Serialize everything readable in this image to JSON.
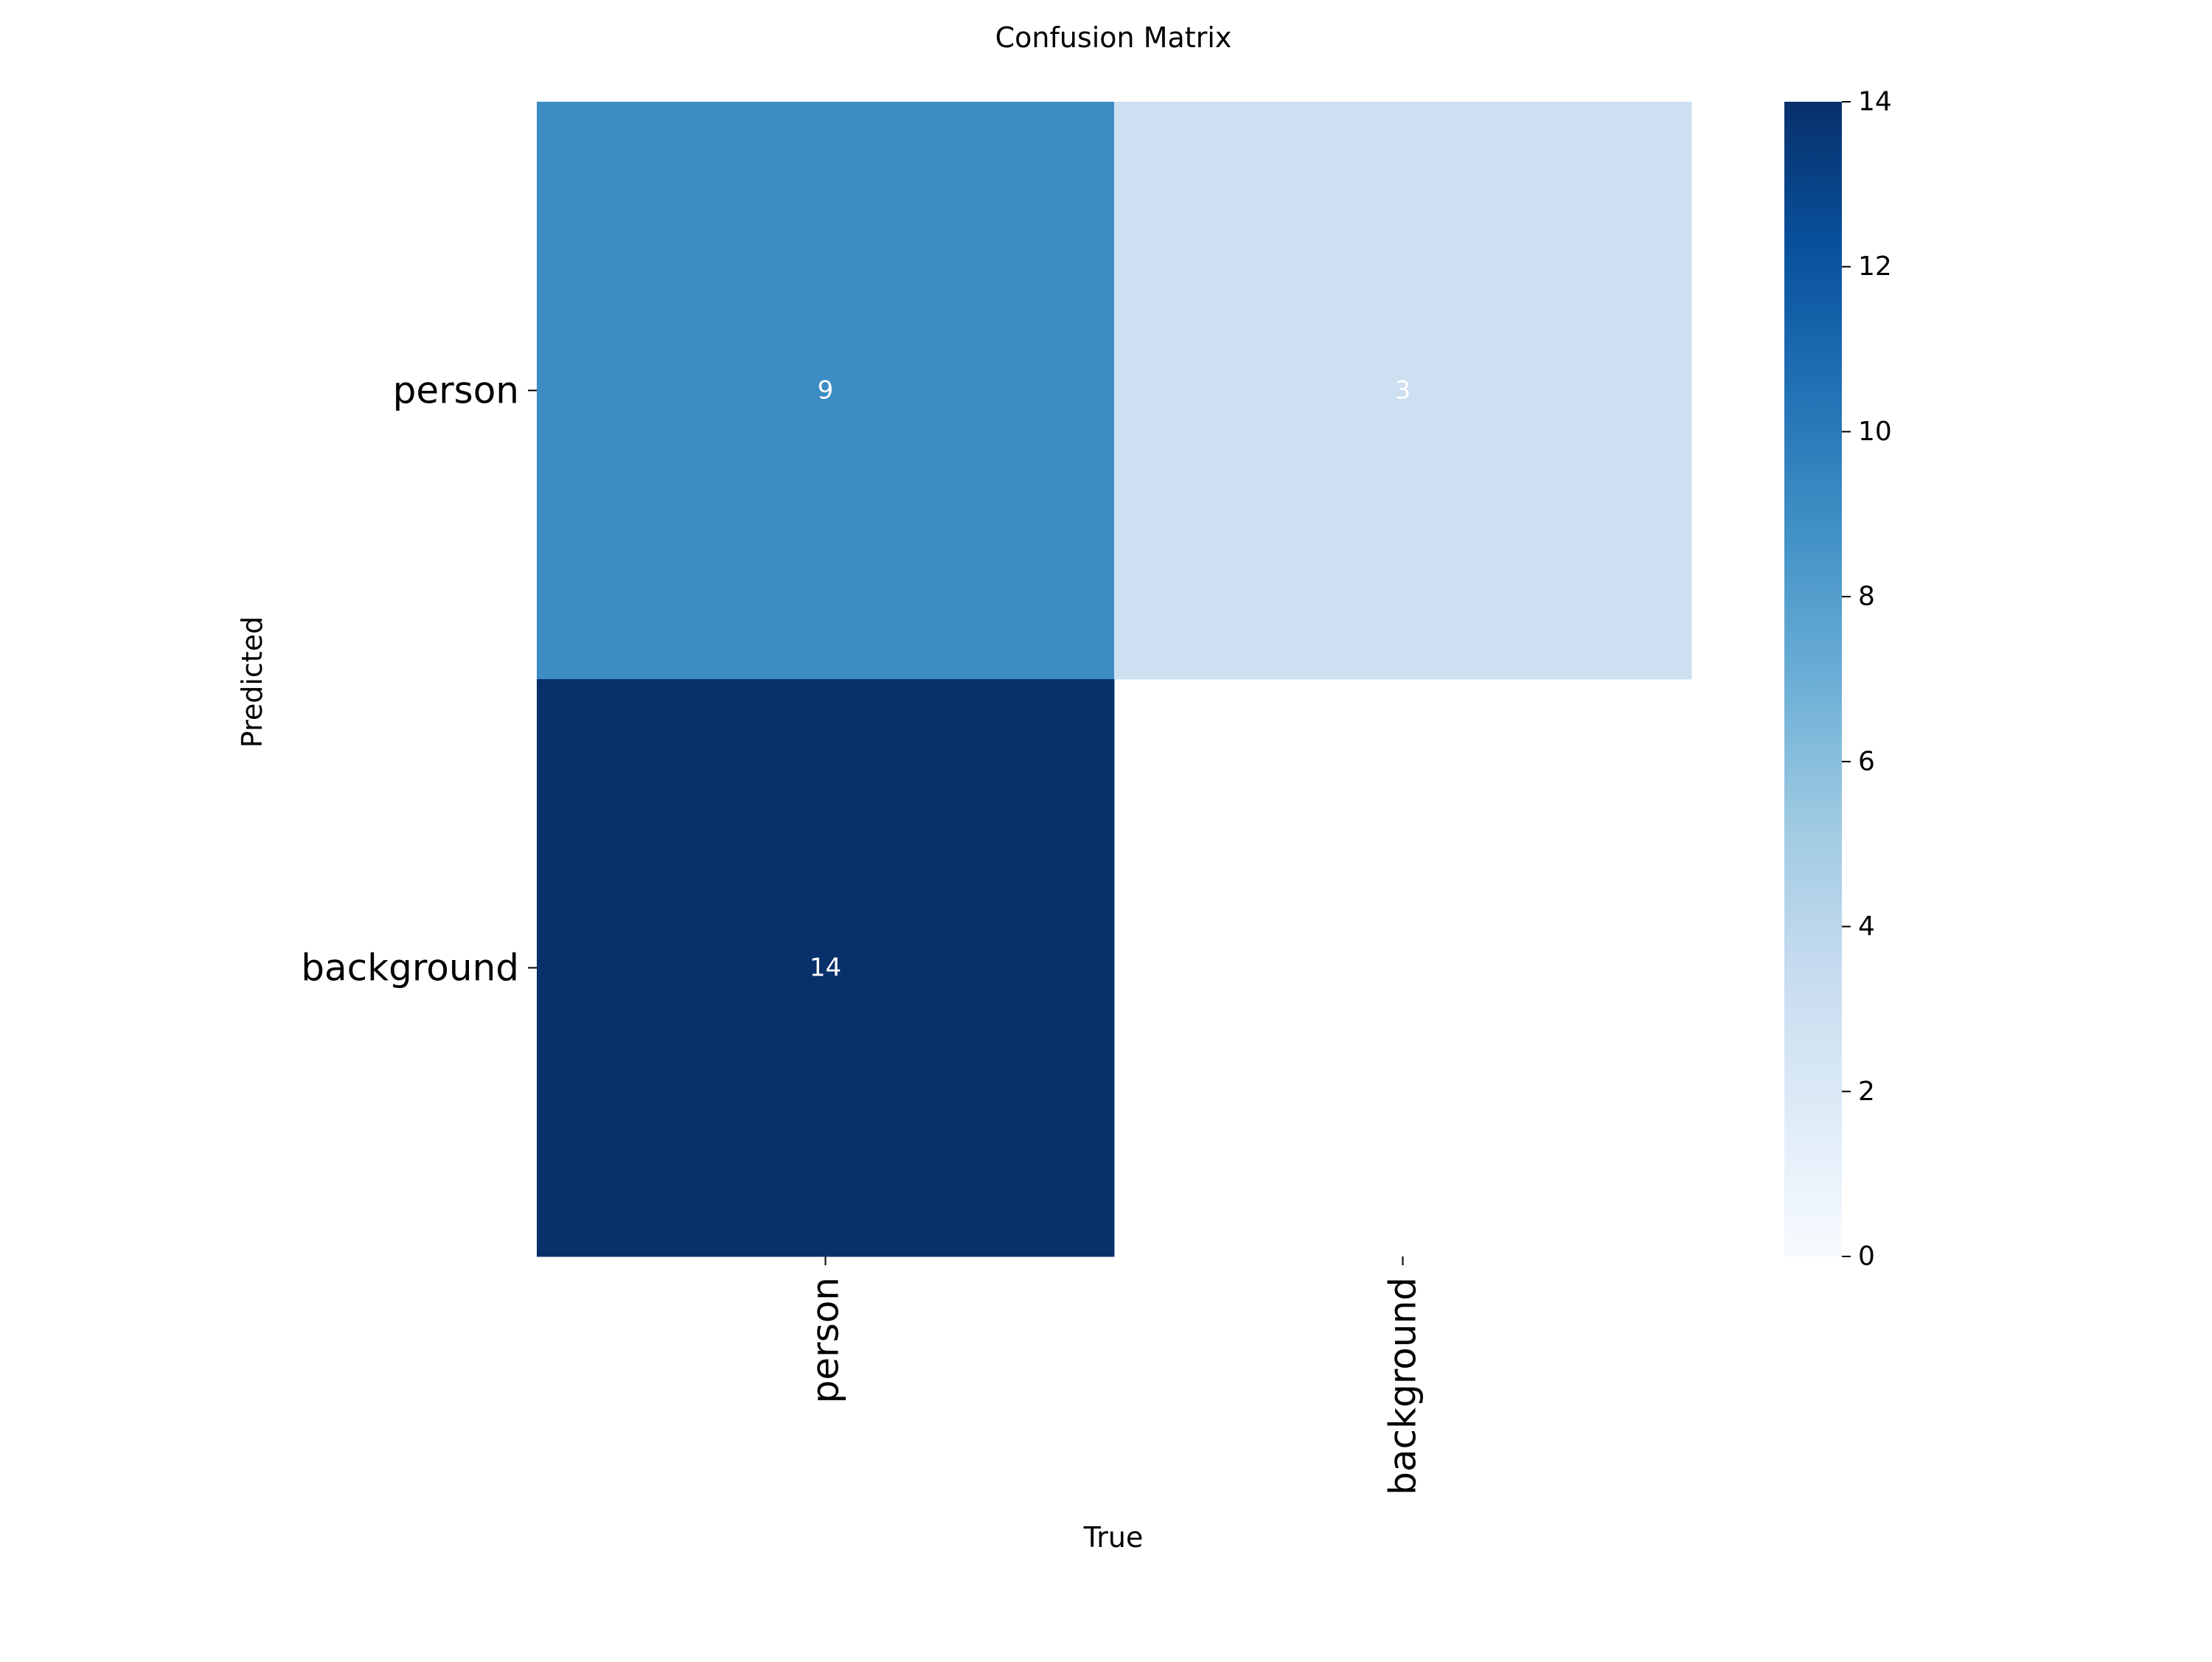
{
  "chart_data": {
    "type": "heatmap",
    "title": "Confusion Matrix",
    "xlabel": "True",
    "ylabel": "Predicted",
    "x_categories": [
      "person",
      "background"
    ],
    "y_categories": [
      "person",
      "background"
    ],
    "values": [
      [
        9,
        3
      ],
      [
        14,
        null
      ]
    ],
    "colormap": "Blues",
    "colorbar": {
      "range": [
        0,
        14
      ],
      "ticks": [
        0,
        2,
        4,
        6,
        8,
        10,
        12,
        14
      ]
    },
    "cell_label_color": "#ffffff",
    "grid": false,
    "legend": "colorbar-right"
  }
}
